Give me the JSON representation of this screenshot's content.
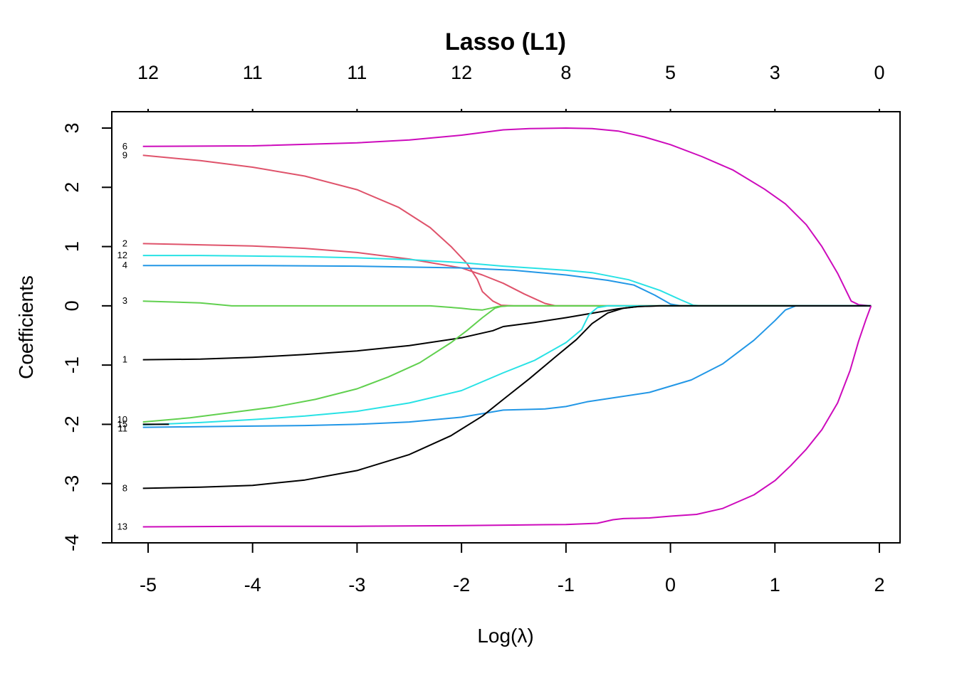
{
  "chart_data": {
    "type": "line",
    "title": "Lasso (L1)",
    "xlabel": "Log(λ)",
    "ylabel": "Coefficients",
    "xlim": [
      -5.35,
      2.2
    ],
    "ylim": [
      -4,
      3.28
    ],
    "x_ticks": [
      "-5",
      "-4",
      "-3",
      "-2",
      "-1",
      "0",
      "1",
      "2"
    ],
    "x_tick_values": [
      -5,
      -4,
      -3,
      -2,
      -1,
      0,
      1,
      2
    ],
    "y_ticks": [
      "-4",
      "-3",
      "-2",
      "-1",
      "0",
      "1",
      "2",
      "3"
    ],
    "y_tick_values": [
      -4,
      -3,
      -2,
      -1,
      0,
      1,
      2,
      3
    ],
    "top_axis": {
      "labels": [
        "12",
        "11",
        "11",
        "12",
        "8",
        "5",
        "3",
        "0"
      ],
      "at": [
        -5,
        -4,
        -3,
        -2,
        -1,
        0,
        1,
        2
      ]
    },
    "grid": false,
    "legend": "none",
    "series": [
      {
        "label": "6",
        "color": "#CD0BBC",
        "points": [
          [
            -5.05,
            2.69
          ],
          [
            -4.0,
            2.7
          ],
          [
            -3.0,
            2.75
          ],
          [
            -2.5,
            2.8
          ],
          [
            -2.0,
            2.88
          ],
          [
            -1.6,
            2.97
          ],
          [
            -1.35,
            2.99
          ],
          [
            -1.0,
            3.0
          ],
          [
            -0.75,
            2.99
          ],
          [
            -0.5,
            2.95
          ],
          [
            -0.25,
            2.85
          ],
          [
            0.0,
            2.72
          ],
          [
            0.3,
            2.52
          ],
          [
            0.6,
            2.29
          ],
          [
            0.9,
            1.97
          ],
          [
            1.1,
            1.72
          ],
          [
            1.3,
            1.37
          ],
          [
            1.45,
            1.0
          ],
          [
            1.6,
            0.55
          ],
          [
            1.73,
            0.08
          ],
          [
            1.8,
            0.02
          ],
          [
            1.92,
            0.0
          ]
        ]
      },
      {
        "label": "9",
        "color": "#DF536B",
        "points": [
          [
            -5.05,
            2.54
          ],
          [
            -4.5,
            2.45
          ],
          [
            -4.0,
            2.34
          ],
          [
            -3.5,
            2.19
          ],
          [
            -3.0,
            1.96
          ],
          [
            -2.6,
            1.66
          ],
          [
            -2.3,
            1.32
          ],
          [
            -2.1,
            1.0
          ],
          [
            -1.95,
            0.72
          ],
          [
            -1.85,
            0.45
          ],
          [
            -1.8,
            0.24
          ],
          [
            -1.7,
            0.08
          ],
          [
            -1.62,
            0.01
          ],
          [
            -1.5,
            0.0
          ],
          [
            1.92,
            0.0
          ]
        ]
      },
      {
        "label": "2",
        "color": "#DF536B",
        "points": [
          [
            -5.05,
            1.05
          ],
          [
            -4.5,
            1.03
          ],
          [
            -4.0,
            1.01
          ],
          [
            -3.5,
            0.97
          ],
          [
            -3.0,
            0.9
          ],
          [
            -2.5,
            0.79
          ],
          [
            -2.0,
            0.64
          ],
          [
            -1.8,
            0.52
          ],
          [
            -1.6,
            0.38
          ],
          [
            -1.4,
            0.2
          ],
          [
            -1.2,
            0.04
          ],
          [
            -1.1,
            0.0
          ],
          [
            1.92,
            0.0
          ]
        ]
      },
      {
        "label": "12",
        "color": "#28E2E5",
        "points": [
          [
            -5.05,
            0.85
          ],
          [
            -4.5,
            0.85
          ],
          [
            -4.0,
            0.84
          ],
          [
            -3.5,
            0.83
          ],
          [
            -3.0,
            0.81
          ],
          [
            -2.5,
            0.78
          ],
          [
            -2.0,
            0.73
          ],
          [
            -1.6,
            0.67
          ],
          [
            -1.0,
            0.6
          ],
          [
            -0.75,
            0.56
          ],
          [
            -0.4,
            0.44
          ],
          [
            -0.1,
            0.26
          ],
          [
            0.1,
            0.1
          ],
          [
            0.22,
            0.01
          ],
          [
            0.3,
            0.0
          ],
          [
            1.92,
            0.0
          ]
        ]
      },
      {
        "label": "4",
        "color": "#2297E6",
        "points": [
          [
            -5.05,
            0.68
          ],
          [
            -4.0,
            0.68
          ],
          [
            -3.0,
            0.67
          ],
          [
            -2.0,
            0.64
          ],
          [
            -1.5,
            0.6
          ],
          [
            -1.0,
            0.52
          ],
          [
            -0.6,
            0.43
          ],
          [
            -0.35,
            0.35
          ],
          [
            -0.15,
            0.18
          ],
          [
            0.0,
            0.03
          ],
          [
            0.1,
            0.0
          ],
          [
            1.92,
            0.0
          ]
        ]
      },
      {
        "label": "3",
        "color": "#61D04F",
        "points": [
          [
            -5.05,
            0.08
          ],
          [
            -4.5,
            0.05
          ],
          [
            -4.2,
            0.0
          ],
          [
            -3.0,
            0.0
          ],
          [
            -2.3,
            0.0
          ],
          [
            -2.0,
            -0.04
          ],
          [
            -1.9,
            -0.06
          ],
          [
            -1.8,
            -0.07
          ],
          [
            -1.72,
            -0.04
          ],
          [
            -1.65,
            -0.01
          ],
          [
            -1.55,
            0.0
          ],
          [
            1.92,
            0.0
          ]
        ]
      },
      {
        "label": "1",
        "color": "#000000",
        "points": [
          [
            -5.05,
            -0.91
          ],
          [
            -4.5,
            -0.9
          ],
          [
            -4.0,
            -0.87
          ],
          [
            -3.5,
            -0.82
          ],
          [
            -3.0,
            -0.76
          ],
          [
            -2.5,
            -0.67
          ],
          [
            -2.0,
            -0.54
          ],
          [
            -1.7,
            -0.42
          ],
          [
            -1.6,
            -0.35
          ],
          [
            -1.3,
            -0.28
          ],
          [
            -1.0,
            -0.2
          ],
          [
            -0.7,
            -0.11
          ],
          [
            -0.5,
            -0.05
          ],
          [
            -0.3,
            -0.01
          ],
          [
            -0.1,
            0.0
          ],
          [
            1.92,
            0.0
          ]
        ]
      },
      {
        "label": "10",
        "color": "#61D04F",
        "points": [
          [
            -5.05,
            -1.96
          ],
          [
            -4.6,
            -1.89
          ],
          [
            -4.2,
            -1.8
          ],
          [
            -3.8,
            -1.71
          ],
          [
            -3.4,
            -1.58
          ],
          [
            -3.0,
            -1.4
          ],
          [
            -2.7,
            -1.2
          ],
          [
            -2.4,
            -0.96
          ],
          [
            -2.1,
            -0.62
          ],
          [
            -1.95,
            -0.42
          ],
          [
            -1.8,
            -0.2
          ],
          [
            -1.68,
            -0.04
          ],
          [
            -1.62,
            -0.01
          ],
          [
            -1.55,
            0.0
          ],
          [
            1.92,
            0.0
          ]
        ]
      },
      {
        "label": "5",
        "color": "#28E2E5",
        "points": [
          [
            -5.05,
            -2.01
          ],
          [
            -4.5,
            -1.97
          ],
          [
            -4.0,
            -1.92
          ],
          [
            -3.5,
            -1.86
          ],
          [
            -3.0,
            -1.78
          ],
          [
            -2.5,
            -1.64
          ],
          [
            -2.0,
            -1.43
          ],
          [
            -1.6,
            -1.13
          ],
          [
            -1.3,
            -0.92
          ],
          [
            -1.0,
            -0.62
          ],
          [
            -0.85,
            -0.4
          ],
          [
            -0.78,
            -0.15
          ],
          [
            -0.7,
            -0.03
          ],
          [
            -0.6,
            0.0
          ],
          [
            1.92,
            0.0
          ]
        ]
      },
      {
        "label": "11",
        "color": "#2297E6",
        "points": [
          [
            -5.05,
            -2.05
          ],
          [
            -4.5,
            -2.04
          ],
          [
            -4.0,
            -2.03
          ],
          [
            -3.5,
            -2.02
          ],
          [
            -3.0,
            -2.0
          ],
          [
            -2.5,
            -1.96
          ],
          [
            -2.0,
            -1.88
          ],
          [
            -1.7,
            -1.79
          ],
          [
            -1.6,
            -1.76
          ],
          [
            -1.2,
            -1.74
          ],
          [
            -1.0,
            -1.7
          ],
          [
            -0.8,
            -1.62
          ],
          [
            -0.5,
            -1.54
          ],
          [
            -0.2,
            -1.46
          ],
          [
            0.2,
            -1.25
          ],
          [
            0.5,
            -0.98
          ],
          [
            0.8,
            -0.58
          ],
          [
            1.0,
            -0.25
          ],
          [
            1.1,
            -0.07
          ],
          [
            1.2,
            0.0
          ],
          [
            1.92,
            0.0
          ]
        ]
      },
      {
        "label": "15",
        "color": "#000000",
        "points": [
          [
            -5.05,
            -2.0
          ],
          [
            -4.8,
            -2.0
          ]
        ]
      },
      {
        "label": "8",
        "color": "#000000",
        "points": [
          [
            -5.05,
            -3.08
          ],
          [
            -4.5,
            -3.06
          ],
          [
            -4.0,
            -3.03
          ],
          [
            -3.5,
            -2.94
          ],
          [
            -3.0,
            -2.78
          ],
          [
            -2.5,
            -2.51
          ],
          [
            -2.1,
            -2.19
          ],
          [
            -1.8,
            -1.86
          ],
          [
            -1.6,
            -1.58
          ],
          [
            -1.35,
            -1.23
          ],
          [
            -1.1,
            -0.86
          ],
          [
            -0.9,
            -0.57
          ],
          [
            -0.75,
            -0.3
          ],
          [
            -0.6,
            -0.12
          ],
          [
            -0.45,
            -0.04
          ],
          [
            -0.3,
            -0.01
          ],
          [
            -0.1,
            0.0
          ],
          [
            1.92,
            0.0
          ]
        ]
      },
      {
        "label": "13",
        "color": "#CD0BBC",
        "points": [
          [
            -5.05,
            -3.73
          ],
          [
            -4.0,
            -3.72
          ],
          [
            -3.0,
            -3.72
          ],
          [
            -2.0,
            -3.71
          ],
          [
            -1.5,
            -3.7
          ],
          [
            -1.0,
            -3.69
          ],
          [
            -0.7,
            -3.67
          ],
          [
            -0.55,
            -3.61
          ],
          [
            -0.45,
            -3.59
          ],
          [
            -0.2,
            -3.58
          ],
          [
            0.0,
            -3.55
          ],
          [
            0.25,
            -3.52
          ],
          [
            0.5,
            -3.42
          ],
          [
            0.8,
            -3.19
          ],
          [
            1.0,
            -2.95
          ],
          [
            1.15,
            -2.7
          ],
          [
            1.3,
            -2.42
          ],
          [
            1.45,
            -2.09
          ],
          [
            1.6,
            -1.64
          ],
          [
            1.72,
            -1.09
          ],
          [
            1.8,
            -0.6
          ],
          [
            1.87,
            -0.24
          ],
          [
            1.92,
            0.0
          ]
        ]
      }
    ],
    "line_labels": [
      {
        "text": "6",
        "x": -5.05,
        "y": 2.69
      },
      {
        "text": "9",
        "x": -5.05,
        "y": 2.54
      },
      {
        "text": "2",
        "x": -5.05,
        "y": 1.05
      },
      {
        "text": "12",
        "x": -5.05,
        "y": 0.85
      },
      {
        "text": "4",
        "x": -5.05,
        "y": 0.68
      },
      {
        "text": "3",
        "x": -5.05,
        "y": 0.08
      },
      {
        "text": "1",
        "x": -5.05,
        "y": -0.91
      },
      {
        "text": "10",
        "x": -5.05,
        "y": -1.92
      },
      {
        "text": "15",
        "x": -5.05,
        "y": -2.0
      },
      {
        "text": "11",
        "x": -5.05,
        "y": -2.07
      },
      {
        "text": "8",
        "x": -5.05,
        "y": -3.08
      },
      {
        "text": "13",
        "x": -5.05,
        "y": -3.73
      }
    ]
  }
}
